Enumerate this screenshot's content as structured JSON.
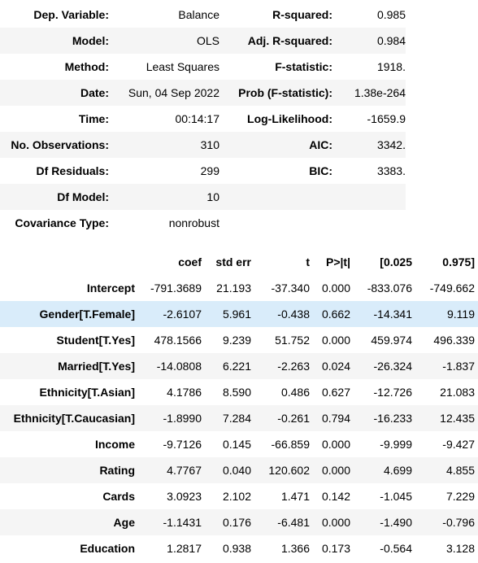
{
  "summary": [
    [
      "Dep. Variable:",
      "Balance",
      "R-squared:",
      "0.985"
    ],
    [
      "Model:",
      "OLS",
      "Adj. R-squared:",
      "0.984"
    ],
    [
      "Method:",
      "Least Squares",
      "F-statistic:",
      "1918."
    ],
    [
      "Date:",
      "Sun, 04 Sep 2022",
      "Prob (F-statistic):",
      "1.38e-264"
    ],
    [
      "Time:",
      "00:14:17",
      "Log-Likelihood:",
      "-1659.9"
    ],
    [
      "No. Observations:",
      "310",
      "AIC:",
      "3342."
    ],
    [
      "Df Residuals:",
      "299",
      "BIC:",
      "3383."
    ],
    [
      "Df Model:",
      "10",
      "",
      ""
    ],
    [
      "Covariance Type:",
      "nonrobust",
      "",
      ""
    ]
  ],
  "coef_header": [
    "",
    "coef",
    "std err",
    "t",
    "P>|t|",
    "[0.025",
    "0.975]"
  ],
  "coef_rows": [
    [
      "Intercept",
      "-791.3689",
      "21.193",
      "-37.340",
      "0.000",
      "-833.076",
      "-749.662"
    ],
    [
      "Gender[T.Female]",
      "-2.6107",
      "5.961",
      "-0.438",
      "0.662",
      "-14.341",
      "9.119"
    ],
    [
      "Student[T.Yes]",
      "478.1566",
      "9.239",
      "51.752",
      "0.000",
      "459.974",
      "496.339"
    ],
    [
      "Married[T.Yes]",
      "-14.0808",
      "6.221",
      "-2.263",
      "0.024",
      "-26.324",
      "-1.837"
    ],
    [
      "Ethnicity[T.Asian]",
      "4.1786",
      "8.590",
      "0.486",
      "0.627",
      "-12.726",
      "21.083"
    ],
    [
      "Ethnicity[T.Caucasian]",
      "-1.8990",
      "7.284",
      "-0.261",
      "0.794",
      "-16.233",
      "12.435"
    ],
    [
      "Income",
      "-9.7126",
      "0.145",
      "-66.859",
      "0.000",
      "-9.999",
      "-9.427"
    ],
    [
      "Rating",
      "4.7767",
      "0.040",
      "120.602",
      "0.000",
      "4.699",
      "4.855"
    ],
    [
      "Cards",
      "3.0923",
      "2.102",
      "1.471",
      "0.142",
      "-1.045",
      "7.229"
    ],
    [
      "Age",
      "-1.1431",
      "0.176",
      "-6.481",
      "0.000",
      "-1.490",
      "-0.796"
    ],
    [
      "Education",
      "1.2817",
      "0.938",
      "1.366",
      "0.173",
      "-0.564",
      "3.128"
    ]
  ]
}
